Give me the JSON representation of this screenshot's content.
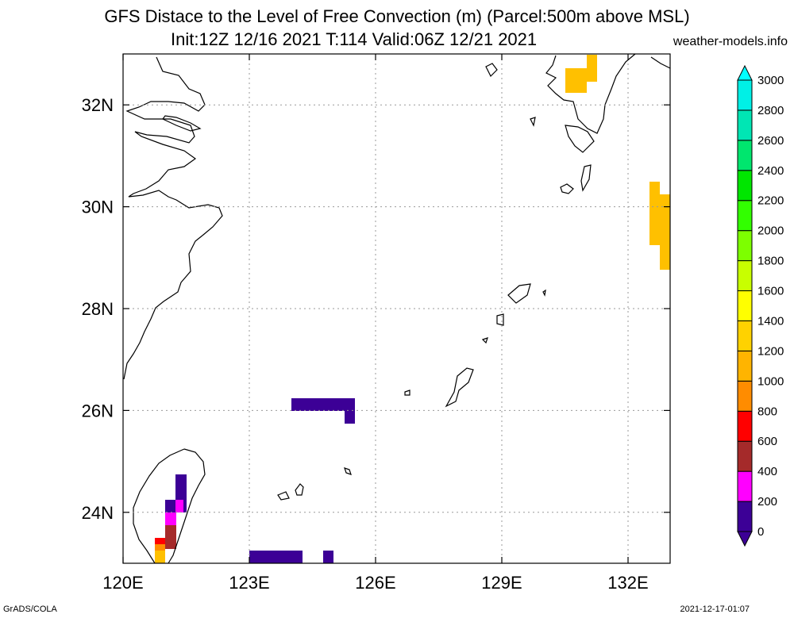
{
  "header": {
    "title_line1": "GFS Distace to the Level of Free Convection (m) (Parcel:500m above MSL)",
    "title_line2": "Init:12Z 12/16 2021 T:114 Valid:06Z 12/21 2021",
    "site": "weather-models.info"
  },
  "footer": {
    "left": "GrADS/COLA",
    "right": "2021-12-17-01:07"
  },
  "map": {
    "lon_range": [
      120,
      133
    ],
    "lat_range": [
      23,
      33
    ],
    "x_ticks": [
      {
        "value": 120,
        "label": "120E"
      },
      {
        "value": 123,
        "label": "123E"
      },
      {
        "value": 126,
        "label": "126E"
      },
      {
        "value": 129,
        "label": "129E"
      },
      {
        "value": 132,
        "label": "132E"
      }
    ],
    "y_ticks": [
      {
        "value": 24,
        "label": "24N"
      },
      {
        "value": 26,
        "label": "26N"
      },
      {
        "value": 28,
        "label": "28N"
      },
      {
        "value": 30,
        "label": "30N"
      },
      {
        "value": 32,
        "label": "32N"
      }
    ],
    "grid": "dotted"
  },
  "colorbar": {
    "labels": [
      "0",
      "200",
      "400",
      "600",
      "800",
      "1000",
      "1200",
      "1400",
      "1600",
      "1800",
      "2000",
      "2200",
      "2400",
      "2600",
      "2800",
      "3000"
    ],
    "colors": [
      "#3c0096",
      "#ff00ff",
      "#a52a2a",
      "#ff0000",
      "#ff8c00",
      "#ffb400",
      "#ffd200",
      "#ffff00",
      "#c8ff00",
      "#7dff00",
      "#32ff00",
      "#00e600",
      "#00e66e",
      "#00e6b4",
      "#00f0e6",
      "#00ffff"
    ]
  }
}
